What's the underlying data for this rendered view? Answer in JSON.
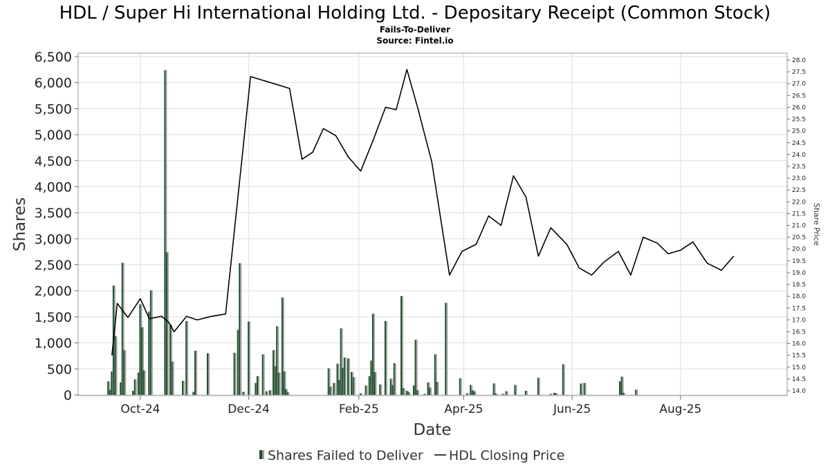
{
  "chart_data": {
    "type": "bar",
    "title": "HDL / Super Hi International Holding Ltd. - Depositary Receipt (Common Stock)",
    "subtitle_lines": [
      "Fails-To-Deliver",
      "Source: Fintel.io"
    ],
    "xlabel": "Date",
    "ylabel": "Shares",
    "y2label": "Share Price",
    "ylim": [
      0,
      6500
    ],
    "y2lim": [
      13.9,
      28.2
    ],
    "y_ticks": [
      0,
      500,
      1000,
      1500,
      2000,
      2500,
      3000,
      3500,
      4000,
      4500,
      5000,
      5500,
      6000,
      6500
    ],
    "y_tick_labels": [
      "0",
      "500",
      "1,000",
      "1,500",
      "2,000",
      "2,500",
      "3,000",
      "3,500",
      "4,000",
      "4,500",
      "5,000",
      "5,500",
      "6,000",
      "6,500"
    ],
    "y2_ticks": [
      14.0,
      14.5,
      15.0,
      15.5,
      16.0,
      16.5,
      17.0,
      17.5,
      18.0,
      18.5,
      19.0,
      19.5,
      20.0,
      20.5,
      21.0,
      21.5,
      22.0,
      22.5,
      23.0,
      23.5,
      24.0,
      24.5,
      25.0,
      25.5,
      26.0,
      26.5,
      27.0,
      27.5,
      28.0
    ],
    "y2_tick_labels": [
      "14.0",
      "14.5",
      "15.0",
      "15.5",
      "16.0",
      "16.5",
      "17.0",
      "17.5",
      "18.0",
      "18.5",
      "19.0",
      "19.5",
      "20.0",
      "20.5",
      "21.0",
      "21.5",
      "22.0",
      "22.5",
      "23.0",
      "23.5",
      "24.0",
      "24.5",
      "25.0",
      "25.5",
      "26.0",
      "26.5",
      "27.0",
      "27.5",
      "28.0"
    ],
    "x_range": [
      "2024-08-27",
      "2025-09-30"
    ],
    "x_ticks": [
      "2024-10-01",
      "2024-12-01",
      "2025-02-01",
      "2025-04-01",
      "2025-06-01",
      "2025-08-01"
    ],
    "x_tick_labels": [
      "Oct-24",
      "Dec-24",
      "Feb-25",
      "Apr-25",
      "Jun-25",
      "Aug-25"
    ],
    "grid": true,
    "legend_position": "bottom",
    "colors": {
      "bar_dark": "#1e4d2b",
      "bar_light": "#9aa09a",
      "line": "#000000",
      "grid": "#dddddd"
    },
    "series": [
      {
        "name": "Shares Failed to Deliver",
        "kind": "bar",
        "points": [
          [
            "2024-09-13",
            260
          ],
          [
            "2024-09-14",
            100
          ],
          [
            "2024-09-15",
            450
          ],
          [
            "2024-09-16",
            2100
          ],
          [
            "2024-09-17",
            1130
          ],
          [
            "2024-09-20",
            240
          ],
          [
            "2024-09-21",
            2540
          ],
          [
            "2024-09-22",
            860
          ],
          [
            "2024-09-27",
            80
          ],
          [
            "2024-09-28",
            300
          ],
          [
            "2024-09-30",
            430
          ],
          [
            "2024-10-01",
            1740
          ],
          [
            "2024-10-02",
            1300
          ],
          [
            "2024-10-03",
            470
          ],
          [
            "2024-10-06",
            1600
          ],
          [
            "2024-10-07",
            2010
          ],
          [
            "2024-10-15",
            6240
          ],
          [
            "2024-10-16",
            2740
          ],
          [
            "2024-10-18",
            1350
          ],
          [
            "2024-10-19",
            640
          ],
          [
            "2024-10-25",
            270
          ],
          [
            "2024-10-27",
            1420
          ],
          [
            "2024-10-31",
            60
          ],
          [
            "2024-11-01",
            850
          ],
          [
            "2024-11-08",
            800
          ],
          [
            "2024-11-23",
            810
          ],
          [
            "2024-11-25",
            1250
          ],
          [
            "2024-11-26",
            2530
          ],
          [
            "2024-11-28",
            60
          ],
          [
            "2024-12-01",
            1410
          ],
          [
            "2024-12-05",
            230
          ],
          [
            "2024-12-06",
            360
          ],
          [
            "2024-12-09",
            780
          ],
          [
            "2024-12-11",
            70
          ],
          [
            "2024-12-13",
            90
          ],
          [
            "2024-12-15",
            860
          ],
          [
            "2024-12-16",
            550
          ],
          [
            "2024-12-17",
            1320
          ],
          [
            "2024-12-18",
            430
          ],
          [
            "2024-12-20",
            1870
          ],
          [
            "2024-12-21",
            450
          ],
          [
            "2024-12-22",
            110
          ],
          [
            "2024-12-23",
            50
          ],
          [
            "2025-01-15",
            510
          ],
          [
            "2025-01-16",
            160
          ],
          [
            "2025-01-18",
            230
          ],
          [
            "2025-01-20",
            600
          ],
          [
            "2025-01-21",
            290
          ],
          [
            "2025-01-22",
            1280
          ],
          [
            "2025-01-23",
            520
          ],
          [
            "2025-01-24",
            720
          ],
          [
            "2025-01-26",
            700
          ],
          [
            "2025-01-28",
            440
          ],
          [
            "2025-01-29",
            340
          ],
          [
            "2025-02-02",
            30
          ],
          [
            "2025-02-05",
            180
          ],
          [
            "2025-02-07",
            360
          ],
          [
            "2025-02-08",
            660
          ],
          [
            "2025-02-09",
            1560
          ],
          [
            "2025-02-10",
            440
          ],
          [
            "2025-02-13",
            200
          ],
          [
            "2025-02-16",
            1420
          ],
          [
            "2025-02-19",
            310
          ],
          [
            "2025-02-20",
            190
          ],
          [
            "2025-02-21",
            610
          ],
          [
            "2025-02-25",
            1900
          ],
          [
            "2025-02-26",
            130
          ],
          [
            "2025-02-28",
            80
          ],
          [
            "2025-03-01",
            50
          ],
          [
            "2025-03-04",
            180
          ],
          [
            "2025-03-05",
            1060
          ],
          [
            "2025-03-06",
            90
          ],
          [
            "2025-03-10",
            20
          ],
          [
            "2025-03-12",
            240
          ],
          [
            "2025-03-13",
            140
          ],
          [
            "2025-03-16",
            780
          ],
          [
            "2025-03-17",
            250
          ],
          [
            "2025-03-22",
            1770
          ],
          [
            "2025-03-30",
            320
          ],
          [
            "2025-04-03",
            30
          ],
          [
            "2025-04-05",
            190
          ],
          [
            "2025-04-06",
            90
          ],
          [
            "2025-04-07",
            70
          ],
          [
            "2025-04-18",
            220
          ],
          [
            "2025-04-19",
            30
          ],
          [
            "2025-04-23",
            20
          ],
          [
            "2025-04-25",
            70
          ],
          [
            "2025-04-30",
            190
          ],
          [
            "2025-05-06",
            80
          ],
          [
            "2025-05-13",
            330
          ],
          [
            "2025-05-20",
            20
          ],
          [
            "2025-05-22",
            40
          ],
          [
            "2025-05-23",
            30
          ],
          [
            "2025-05-27",
            590
          ],
          [
            "2025-06-06",
            220
          ],
          [
            "2025-06-08",
            230
          ],
          [
            "2025-06-28",
            260
          ],
          [
            "2025-06-29",
            350
          ],
          [
            "2025-06-30",
            40
          ],
          [
            "2025-07-07",
            100
          ]
        ]
      },
      {
        "name": "HDL Closing Price",
        "kind": "line",
        "points": [
          [
            "2024-09-15",
            15.5
          ],
          [
            "2024-09-18",
            17.7
          ],
          [
            "2024-09-24",
            17.1
          ],
          [
            "2024-10-01",
            17.9
          ],
          [
            "2024-10-06",
            17.05
          ],
          [
            "2024-10-13",
            17.15
          ],
          [
            "2024-10-17",
            16.9
          ],
          [
            "2024-10-20",
            16.5
          ],
          [
            "2024-10-27",
            17.15
          ],
          [
            "2024-11-02",
            17.0
          ],
          [
            "2024-11-10",
            17.15
          ],
          [
            "2024-11-18",
            17.25
          ],
          [
            "2024-11-28",
            24.4
          ],
          [
            "2024-12-02",
            27.3
          ],
          [
            "2024-12-24",
            26.8
          ],
          [
            "2024-12-31",
            23.8
          ],
          [
            "2025-01-06",
            24.1
          ],
          [
            "2025-01-12",
            25.1
          ],
          [
            "2025-01-19",
            24.8
          ],
          [
            "2025-01-26",
            23.9
          ],
          [
            "2025-02-02",
            23.3
          ],
          [
            "2025-02-09",
            24.6
          ],
          [
            "2025-02-16",
            26.0
          ],
          [
            "2025-02-22",
            25.9
          ],
          [
            "2025-02-28",
            27.6
          ],
          [
            "2025-03-06",
            26.0
          ],
          [
            "2025-03-14",
            23.7
          ],
          [
            "2025-03-24",
            18.9
          ],
          [
            "2025-03-31",
            19.9
          ],
          [
            "2025-04-08",
            20.2
          ],
          [
            "2025-04-15",
            21.4
          ],
          [
            "2025-04-22",
            21.0
          ],
          [
            "2025-04-29",
            23.1
          ],
          [
            "2025-05-06",
            22.2
          ],
          [
            "2025-05-13",
            19.7
          ],
          [
            "2025-05-20",
            20.9
          ],
          [
            "2025-05-29",
            20.2
          ],
          [
            "2025-06-05",
            19.2
          ],
          [
            "2025-06-12",
            18.9
          ],
          [
            "2025-06-19",
            19.45
          ],
          [
            "2025-06-27",
            19.9
          ],
          [
            "2025-07-04",
            18.9
          ],
          [
            "2025-07-11",
            20.5
          ],
          [
            "2025-07-19",
            20.25
          ],
          [
            "2025-07-25",
            19.8
          ],
          [
            "2025-08-01",
            19.95
          ],
          [
            "2025-08-08",
            20.3
          ],
          [
            "2025-08-16",
            19.4
          ],
          [
            "2025-08-24",
            19.1
          ],
          [
            "2025-08-31",
            19.7
          ]
        ]
      }
    ]
  }
}
